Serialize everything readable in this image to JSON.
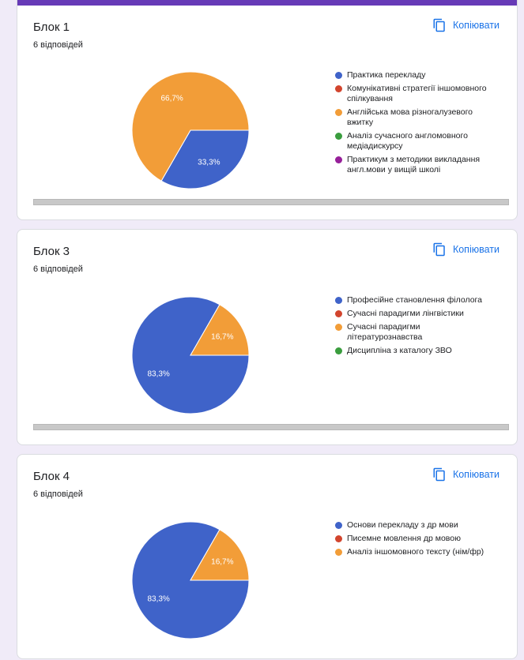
{
  "copy_label": "Копіювати",
  "colors": {
    "blue": "#3f63c9",
    "red": "#d2452e",
    "orange": "#f29d38",
    "green": "#3a9d3e",
    "purple": "#961f99",
    "accent": "#673ab7",
    "link": "#1a73e8"
  },
  "cards": [
    {
      "title": "Блок 1",
      "responses": "6 відповідей",
      "legend": [
        {
          "label": "Практика перекладу",
          "color": "#3f63c9"
        },
        {
          "label": "Комунікативні стратегії іншомовного спілкування",
          "color": "#d2452e"
        },
        {
          "label": "Англійська мова різногалузевого вжитку",
          "color": "#f29d38"
        },
        {
          "label": "Аналіз сучасного англомовного медіадискурсу",
          "color": "#3a9d3e"
        },
        {
          "label": "Практикум з методики викладання англ.мови у вищій школі",
          "color": "#961f99"
        }
      ]
    },
    {
      "title": "Блок 3",
      "responses": "6 відповідей",
      "legend": [
        {
          "label": "Професійне становлення філолога",
          "color": "#3f63c9"
        },
        {
          "label": "Сучасні парадигми лінгвістики",
          "color": "#d2452e"
        },
        {
          "label": "Сучасні парадигми літературознавства",
          "color": "#f29d38"
        },
        {
          "label": "Дисципліна з каталогу ЗВО",
          "color": "#3a9d3e"
        }
      ]
    },
    {
      "title": "Блок 4",
      "responses": "6 відповідей",
      "legend": [
        {
          "label": "Основи перекладу з др мови",
          "color": "#3f63c9"
        },
        {
          "label": "Писемне мовлення др мовою",
          "color": "#d2452e"
        },
        {
          "label": "Аналіз іншомовного тексту (нім/фр)",
          "color": "#f29d38"
        }
      ]
    }
  ],
  "chart_data": [
    {
      "type": "pie",
      "title": "Блок 1",
      "categories": [
        "Практика перекладу",
        "Комунікативні стратегії іншомовного спілкування",
        "Англійська мова різногалузевого вжитку",
        "Аналіз сучасного англомовного медіадискурсу",
        "Практикум з методики викладання англ.мови у вищій школі"
      ],
      "values": [
        33.3,
        0,
        66.7,
        0,
        0
      ],
      "labels": [
        "33,3%",
        "",
        "66,7%",
        "",
        ""
      ],
      "colors": [
        "#3f63c9",
        "#d2452e",
        "#f29d38",
        "#3a9d3e",
        "#961f99"
      ],
      "legend": "right"
    },
    {
      "type": "pie",
      "title": "Блок 3",
      "categories": [
        "Професійне становлення філолога",
        "Сучасні парадигми лінгвістики",
        "Сучасні парадигми літературознавства",
        "Дисципліна з каталогу ЗВО"
      ],
      "values": [
        83.3,
        0,
        16.7,
        0
      ],
      "labels": [
        "83,3%",
        "",
        "16,7%",
        ""
      ],
      "colors": [
        "#3f63c9",
        "#d2452e",
        "#f29d38",
        "#3a9d3e"
      ],
      "legend": "right"
    },
    {
      "type": "pie",
      "title": "Блок 4",
      "categories": [
        "Основи перекладу з др мови",
        "Писемне мовлення др мовою",
        "Аналіз іншомовного тексту (нім/фр)"
      ],
      "values": [
        83.3,
        0,
        16.7
      ],
      "labels": [
        "83,3%",
        "",
        "16,7%"
      ],
      "colors": [
        "#3f63c9",
        "#d2452e",
        "#f29d38"
      ],
      "legend": "right"
    }
  ]
}
